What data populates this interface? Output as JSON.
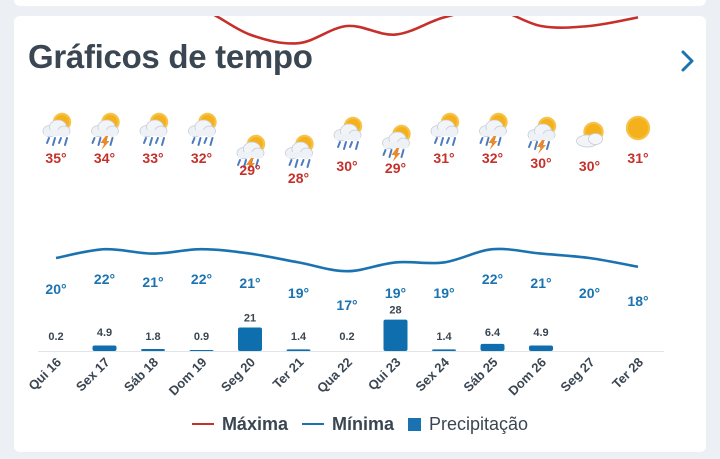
{
  "header": {
    "title": "Gráficos de tempo"
  },
  "colors": {
    "max": "#c62f2a",
    "min": "#1a73b0",
    "precip": "#0f6fae",
    "label": "#3a4652"
  },
  "legend": {
    "max": "Máxima",
    "min": "Mínima",
    "precip": "Precipitação"
  },
  "chart_data": {
    "type": "line",
    "categories": [
      "Qui 16",
      "Sex 17",
      "Sáb 18",
      "Dom 19",
      "Seg 20",
      "Ter 21",
      "Qua 22",
      "Qui 23",
      "Sex 24",
      "Sáb 25",
      "Dom 26",
      "Seg 27",
      "Ter 28"
    ],
    "icons": [
      "sun-rain-icon",
      "sun-storm-icon",
      "sun-rain-icon",
      "sun-rain-icon",
      "sun-storm-icon",
      "sun-rain-icon",
      "sun-rain-icon",
      "sun-storm-icon",
      "sun-rain-icon",
      "sun-storm-icon",
      "sun-storm-icon",
      "sun-cloud-icon",
      "sun-icon"
    ],
    "series": [
      {
        "name": "Máxima",
        "values": [
          35,
          34,
          33,
          32,
          29,
          28,
          30,
          29,
          31,
          32,
          30,
          30,
          31
        ],
        "labels": [
          "35°",
          "34°",
          "33°",
          "32°",
          "29°",
          "28°",
          "30°",
          "29°",
          "31°",
          "32°",
          "30°",
          "30°",
          "31°"
        ]
      },
      {
        "name": "Mínima",
        "values": [
          20,
          22,
          21,
          22,
          21,
          19,
          17,
          19,
          19,
          22,
          21,
          20,
          18
        ],
        "labels": [
          "20°",
          "22°",
          "21°",
          "22°",
          "21°",
          "19°",
          "17°",
          "19°",
          "19°",
          "22°",
          "21°",
          "20°",
          "18°"
        ]
      },
      {
        "name": "Precipitação",
        "values": [
          0.2,
          4.9,
          1.8,
          0.9,
          21,
          1.4,
          0.2,
          28,
          1.4,
          6.4,
          4.9,
          null,
          null
        ],
        "labels": [
          "0.2",
          "4.9",
          "1.8",
          "0.9",
          "21",
          "1.4",
          "0.2",
          "28",
          "1.4",
          "6.4",
          "4.9",
          "",
          ""
        ]
      }
    ]
  }
}
